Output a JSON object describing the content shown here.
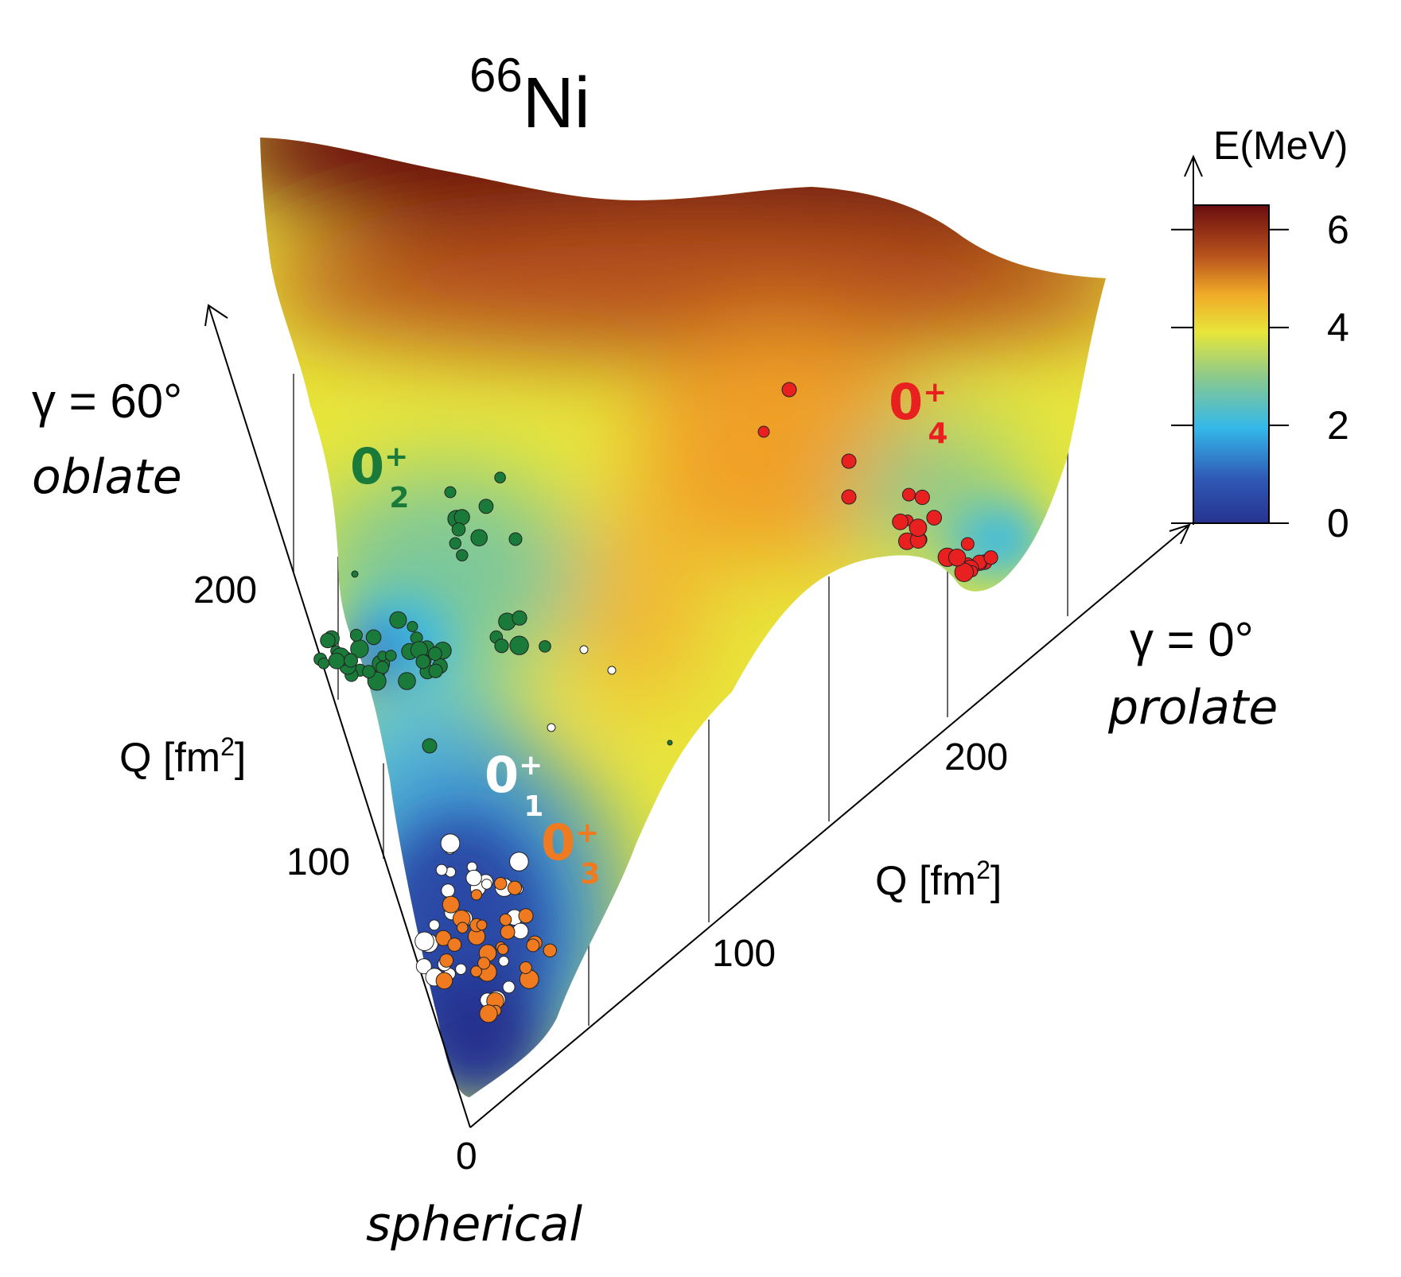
{
  "chart_data": {
    "type": "heatmap",
    "title": {
      "sup": "66",
      "base": "Ni"
    },
    "colorbar": {
      "label": "E(MeV)",
      "ticks": [
        "0",
        "2",
        "4",
        "6"
      ],
      "range": [
        0,
        6.5
      ]
    },
    "axes": {
      "oblate": {
        "gamma": "γ = 60°",
        "shape": "oblate",
        "qlabel": "Q [fm",
        "qsup": "2",
        "qend": "]",
        "ticks": [
          "100",
          "200"
        ]
      },
      "prolate": {
        "gamma": "γ = 0°",
        "shape": "prolate",
        "qlabel": "Q [fm",
        "qsup": "2",
        "qend": "]",
        "ticks": [
          "100",
          "200"
        ]
      },
      "origin": {
        "tick": "0",
        "shape": "spherical"
      }
    },
    "states": [
      {
        "label": "0",
        "sup": "+",
        "sub": "1",
        "color": "#ffffff"
      },
      {
        "label": "0",
        "sup": "+",
        "sub": "2",
        "color": "#1a7a3a"
      },
      {
        "label": "0",
        "sup": "+",
        "sub": "3",
        "color": "#f07a20"
      },
      {
        "label": "0",
        "sup": "+",
        "sub": "4",
        "color": "#e82020"
      }
    ],
    "colors": {
      "green": "#1a7a3a",
      "white": "#ffffff",
      "orange": "#f07a20",
      "red": "#e82020"
    }
  }
}
